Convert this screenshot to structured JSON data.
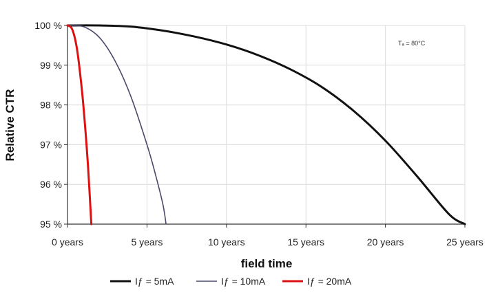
{
  "chart_data": {
    "type": "line",
    "xlabel": "field time",
    "ylabel": "Relative CTR",
    "annotation": "Tₐ = 80°C",
    "xlim": [
      0,
      25
    ],
    "ylim": [
      95,
      100
    ],
    "x_ticks": [
      "0 years",
      "5 years",
      "10 years",
      "15 years",
      "20 years",
      "25 years"
    ],
    "x_tick_values": [
      0,
      5,
      10,
      15,
      20,
      25
    ],
    "y_ticks": [
      "95 %",
      "96 %",
      "97 %",
      "98 %",
      "99 %",
      "100 %"
    ],
    "y_tick_values": [
      95,
      96,
      97,
      98,
      99,
      100
    ],
    "grid": true,
    "legend_position": "bottom",
    "series": [
      {
        "name": "Iƒ = 5mA",
        "color": "#111111",
        "x": [
          0,
          2,
          4,
          6,
          8,
          10,
          12,
          14,
          16,
          18,
          20,
          22,
          24,
          25
        ],
        "values": [
          100,
          100,
          99.97,
          99.87,
          99.72,
          99.52,
          99.25,
          98.9,
          98.45,
          97.85,
          97.1,
          96.2,
          95.25,
          95
        ]
      },
      {
        "name": "Iƒ = 10mA",
        "color": "#4a4a6a",
        "x": [
          0,
          1,
          2,
          3,
          4,
          5,
          5.5,
          6,
          6.2
        ],
        "values": [
          100,
          99.97,
          99.7,
          99.1,
          98.2,
          97.0,
          96.3,
          95.5,
          95
        ]
      },
      {
        "name": "Iƒ = 20mA",
        "color": "#dd1111",
        "x": [
          0,
          0.3,
          0.6,
          0.9,
          1.1,
          1.3,
          1.5
        ],
        "values": [
          100,
          99.9,
          99.4,
          98.4,
          97.5,
          96.4,
          95
        ]
      }
    ]
  }
}
